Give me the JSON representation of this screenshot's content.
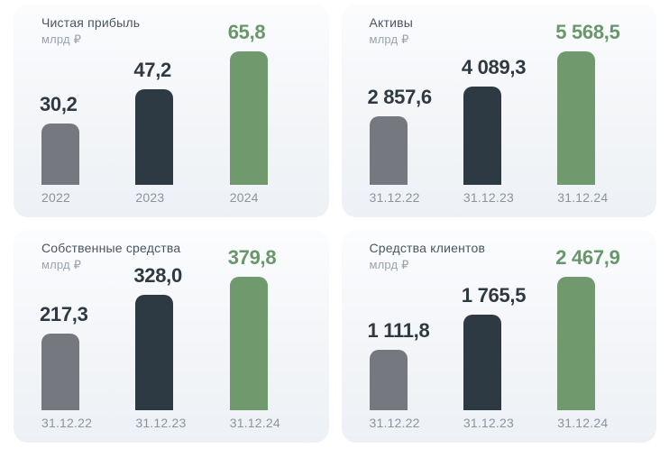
{
  "colors": {
    "page_background": "#ffffff",
    "card_background_top": "#fbfcfe",
    "card_background_bottom": "#edf1f5",
    "series_bars": [
      "#76787f",
      "#2d3a44",
      "#709a6e"
    ],
    "series_value_text": [
      "#2f3942",
      "#2f3942",
      "#68976a"
    ],
    "title_text": "#4b555e",
    "unit_text": "#9aa3ac",
    "axis_label_text": "#8b949c"
  },
  "chart_data": [
    {
      "type": "bar",
      "title": "Чистая прибыль",
      "unit": "млрд ₽",
      "categories": [
        "2022",
        "2023",
        "2024"
      ],
      "values": [
        30.2,
        47.2,
        65.8
      ],
      "value_labels": [
        "30,2",
        "47,2",
        "65,8"
      ],
      "ylim": [
        0,
        65.8
      ],
      "grid": false,
      "legend": false
    },
    {
      "type": "bar",
      "title": "Активы",
      "unit": "млрд ₽",
      "categories": [
        "31.12.22",
        "31.12.23",
        "31.12.24"
      ],
      "values": [
        2857.6,
        4089.3,
        5568.5
      ],
      "value_labels": [
        "2 857,6",
        "4 089,3",
        "5 568,5"
      ],
      "ylim": [
        0,
        5568.5
      ],
      "grid": false,
      "legend": false
    },
    {
      "type": "bar",
      "title": "Собственные средства",
      "unit": "млрд ₽",
      "categories": [
        "31.12.22",
        "31.12.23",
        "31.12.24"
      ],
      "values": [
        217.3,
        328.0,
        379.8
      ],
      "value_labels": [
        "217,3",
        "328,0",
        "379,8"
      ],
      "ylim": [
        0,
        379.8
      ],
      "grid": false,
      "legend": false
    },
    {
      "type": "bar",
      "title": "Средства клиентов",
      "unit": "млрд ₽",
      "categories": [
        "31.12.22",
        "31.12.23",
        "31.12.24"
      ],
      "values": [
        1111.8,
        1765.5,
        2467.9
      ],
      "value_labels": [
        "1 111,8",
        "1 765,5",
        "2 467,9"
      ],
      "ylim": [
        0,
        2467.9
      ],
      "grid": false,
      "legend": false
    }
  ]
}
